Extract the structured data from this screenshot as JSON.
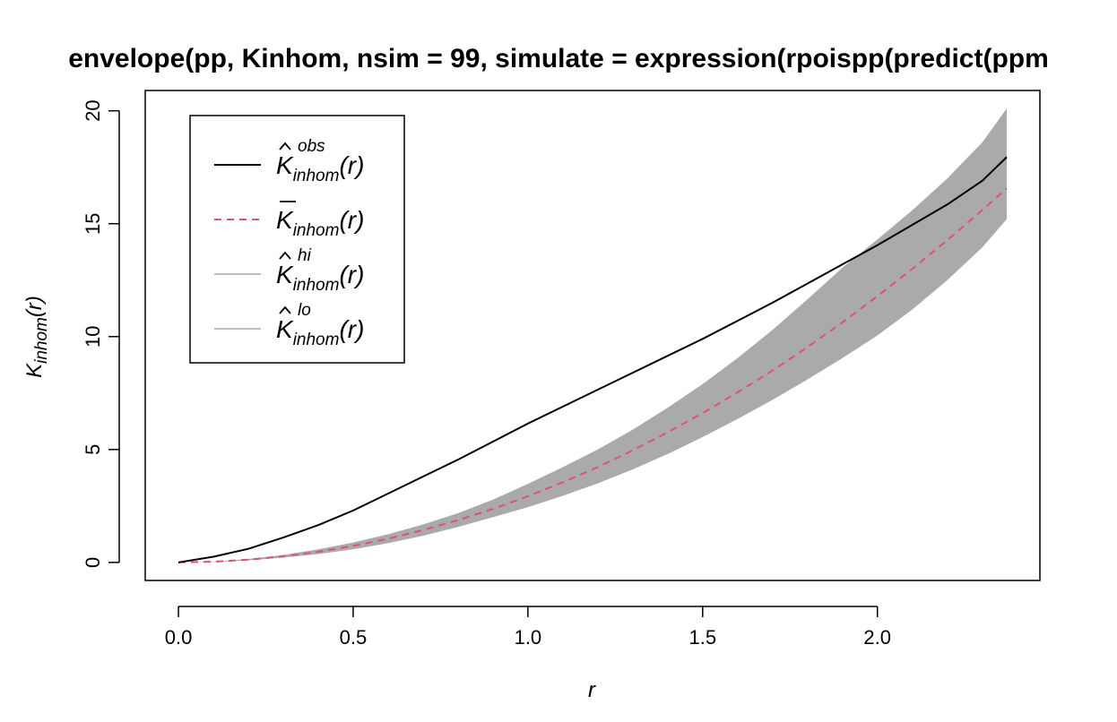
{
  "chart_data": {
    "type": "line",
    "title": "envelope(pp, Kinhom, nsim = 99, simulate = expression(rpoispp(predict(ppm",
    "xlabel": "r",
    "ylabel": {
      "main": "K",
      "sub": "inhom",
      "suffix": "(r)"
    },
    "xlim": [
      0,
      2.37
    ],
    "ylim": [
      0,
      20
    ],
    "xticks": [
      0.0,
      0.5,
      1.0,
      1.5,
      2.0
    ],
    "xtick_labels": [
      "0.0",
      "0.5",
      "1.0",
      "1.5",
      "2.0"
    ],
    "yticks": [
      0,
      5,
      10,
      15,
      20
    ],
    "ytick_labels": [
      "0",
      "5",
      "10",
      "15",
      "20"
    ],
    "grid": false,
    "legend_position": "top-left",
    "x": [
      0,
      0.1,
      0.2,
      0.3,
      0.4,
      0.5,
      0.6,
      0.7,
      0.8,
      0.9,
      1.0,
      1.1,
      1.2,
      1.3,
      1.4,
      1.5,
      1.6,
      1.7,
      1.8,
      1.9,
      2.0,
      2.1,
      2.2,
      2.3,
      2.37
    ],
    "series": [
      {
        "key": "obs",
        "legend": {
          "main": "K",
          "sub": "inhom",
          "sup": "obs",
          "accent": "hat",
          "suffix": "(r)"
        },
        "color": "#000000",
        "style": "solid",
        "values": [
          0,
          0.25,
          0.6,
          1.1,
          1.65,
          2.3,
          3.05,
          3.8,
          4.55,
          5.35,
          6.15,
          6.9,
          7.65,
          8.4,
          9.15,
          9.9,
          10.7,
          11.5,
          12.35,
          13.2,
          14.05,
          14.95,
          15.85,
          16.9,
          17.95
        ]
      },
      {
        "key": "mmean",
        "legend": {
          "main": "K",
          "sub": "inhom",
          "sup": "",
          "accent": "bar",
          "suffix": "(r)"
        },
        "color": "#df536b",
        "style": "dashed",
        "values": [
          0,
          0.03,
          0.12,
          0.27,
          0.47,
          0.73,
          1.05,
          1.43,
          1.87,
          2.37,
          2.93,
          3.55,
          4.22,
          4.96,
          5.76,
          6.61,
          7.53,
          8.5,
          9.54,
          10.63,
          11.79,
          13.0,
          14.27,
          15.6,
          16.56
        ]
      },
      {
        "key": "hi",
        "legend": {
          "main": "K",
          "sub": "inhom",
          "sup": "hi",
          "accent": "hat",
          "suffix": "(r)"
        },
        "color": "#bebebe",
        "style": "solid",
        "values": [
          0,
          0.04,
          0.15,
          0.33,
          0.58,
          0.88,
          1.25,
          1.68,
          2.18,
          2.78,
          3.48,
          4.22,
          5.0,
          5.88,
          6.85,
          7.9,
          9.05,
          10.3,
          11.65,
          13.05,
          14.3,
          15.6,
          17.0,
          18.6,
          20.1
        ]
      },
      {
        "key": "lo",
        "legend": {
          "main": "K",
          "sub": "inhom",
          "sup": "lo",
          "accent": "hat",
          "suffix": "(r)"
        },
        "color": "#bebebe",
        "style": "solid",
        "values": [
          0,
          0.02,
          0.09,
          0.21,
          0.37,
          0.58,
          0.85,
          1.18,
          1.57,
          2.0,
          2.45,
          2.95,
          3.5,
          4.12,
          4.8,
          5.55,
          6.35,
          7.2,
          8.1,
          9.05,
          10.05,
          11.2,
          12.5,
          13.95,
          15.2
        ]
      }
    ],
    "envelope_color": "#aaaaaa"
  }
}
